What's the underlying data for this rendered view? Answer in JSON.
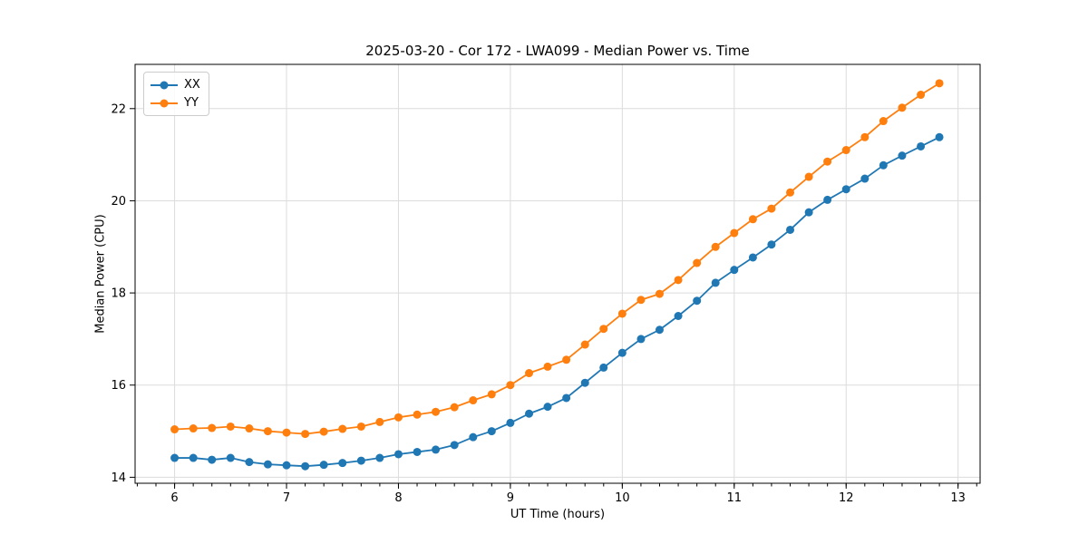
{
  "chart_data": {
    "type": "line",
    "title": "2025-03-20 - Cor 172 - LWA099 - Median Power vs. Time",
    "xlabel": "UT Time (hours)",
    "ylabel": "Median Power (CPU)",
    "xlim": [
      5.647,
      13.197
    ],
    "ylim": [
      13.87,
      22.96
    ],
    "x_ticks": [
      6,
      7,
      8,
      9,
      10,
      11,
      12,
      13
    ],
    "y_ticks": [
      14,
      16,
      18,
      20,
      22
    ],
    "x_minor_step_hours": 0.1666667,
    "grid": true,
    "grid_color": "#dcdcdc",
    "legend_position": "upper left",
    "x": [
      6.0,
      6.167,
      6.333,
      6.5,
      6.667,
      6.833,
      7.0,
      7.167,
      7.333,
      7.5,
      7.667,
      7.833,
      8.0,
      8.167,
      8.333,
      8.5,
      8.667,
      8.833,
      9.0,
      9.167,
      9.333,
      9.5,
      9.667,
      9.833,
      10.0,
      10.167,
      10.333,
      10.5,
      10.667,
      10.833,
      11.0,
      11.167,
      11.333,
      11.5,
      11.667,
      11.833,
      12.0,
      12.167,
      12.333,
      12.5,
      12.667,
      12.833
    ],
    "series": [
      {
        "name": "XX",
        "color": "#1f77b4",
        "values": [
          14.42,
          14.42,
          14.38,
          14.42,
          14.33,
          14.28,
          14.26,
          14.24,
          14.27,
          14.31,
          14.36,
          14.42,
          14.5,
          14.55,
          14.6,
          14.7,
          14.87,
          15.0,
          15.18,
          15.38,
          15.53,
          15.72,
          16.05,
          16.38,
          16.7,
          17.0,
          17.2,
          17.5,
          17.83,
          18.22,
          18.5,
          18.77,
          19.05,
          19.37,
          19.75,
          20.02,
          20.25,
          20.48,
          20.77,
          20.98,
          21.18,
          21.38
        ]
      },
      {
        "name": "YY",
        "color": "#ff7f0e",
        "values": [
          15.04,
          15.06,
          15.07,
          15.1,
          15.06,
          15.0,
          14.97,
          14.94,
          14.99,
          15.05,
          15.1,
          15.2,
          15.3,
          15.36,
          15.42,
          15.52,
          15.67,
          15.8,
          16.0,
          16.26,
          16.4,
          16.55,
          16.88,
          17.22,
          17.55,
          17.85,
          17.98,
          18.28,
          18.65,
          19.0,
          19.3,
          19.6,
          19.83,
          20.18,
          20.52,
          20.85,
          21.1,
          21.38,
          21.73,
          22.02,
          22.3,
          22.55
        ]
      }
    ]
  }
}
